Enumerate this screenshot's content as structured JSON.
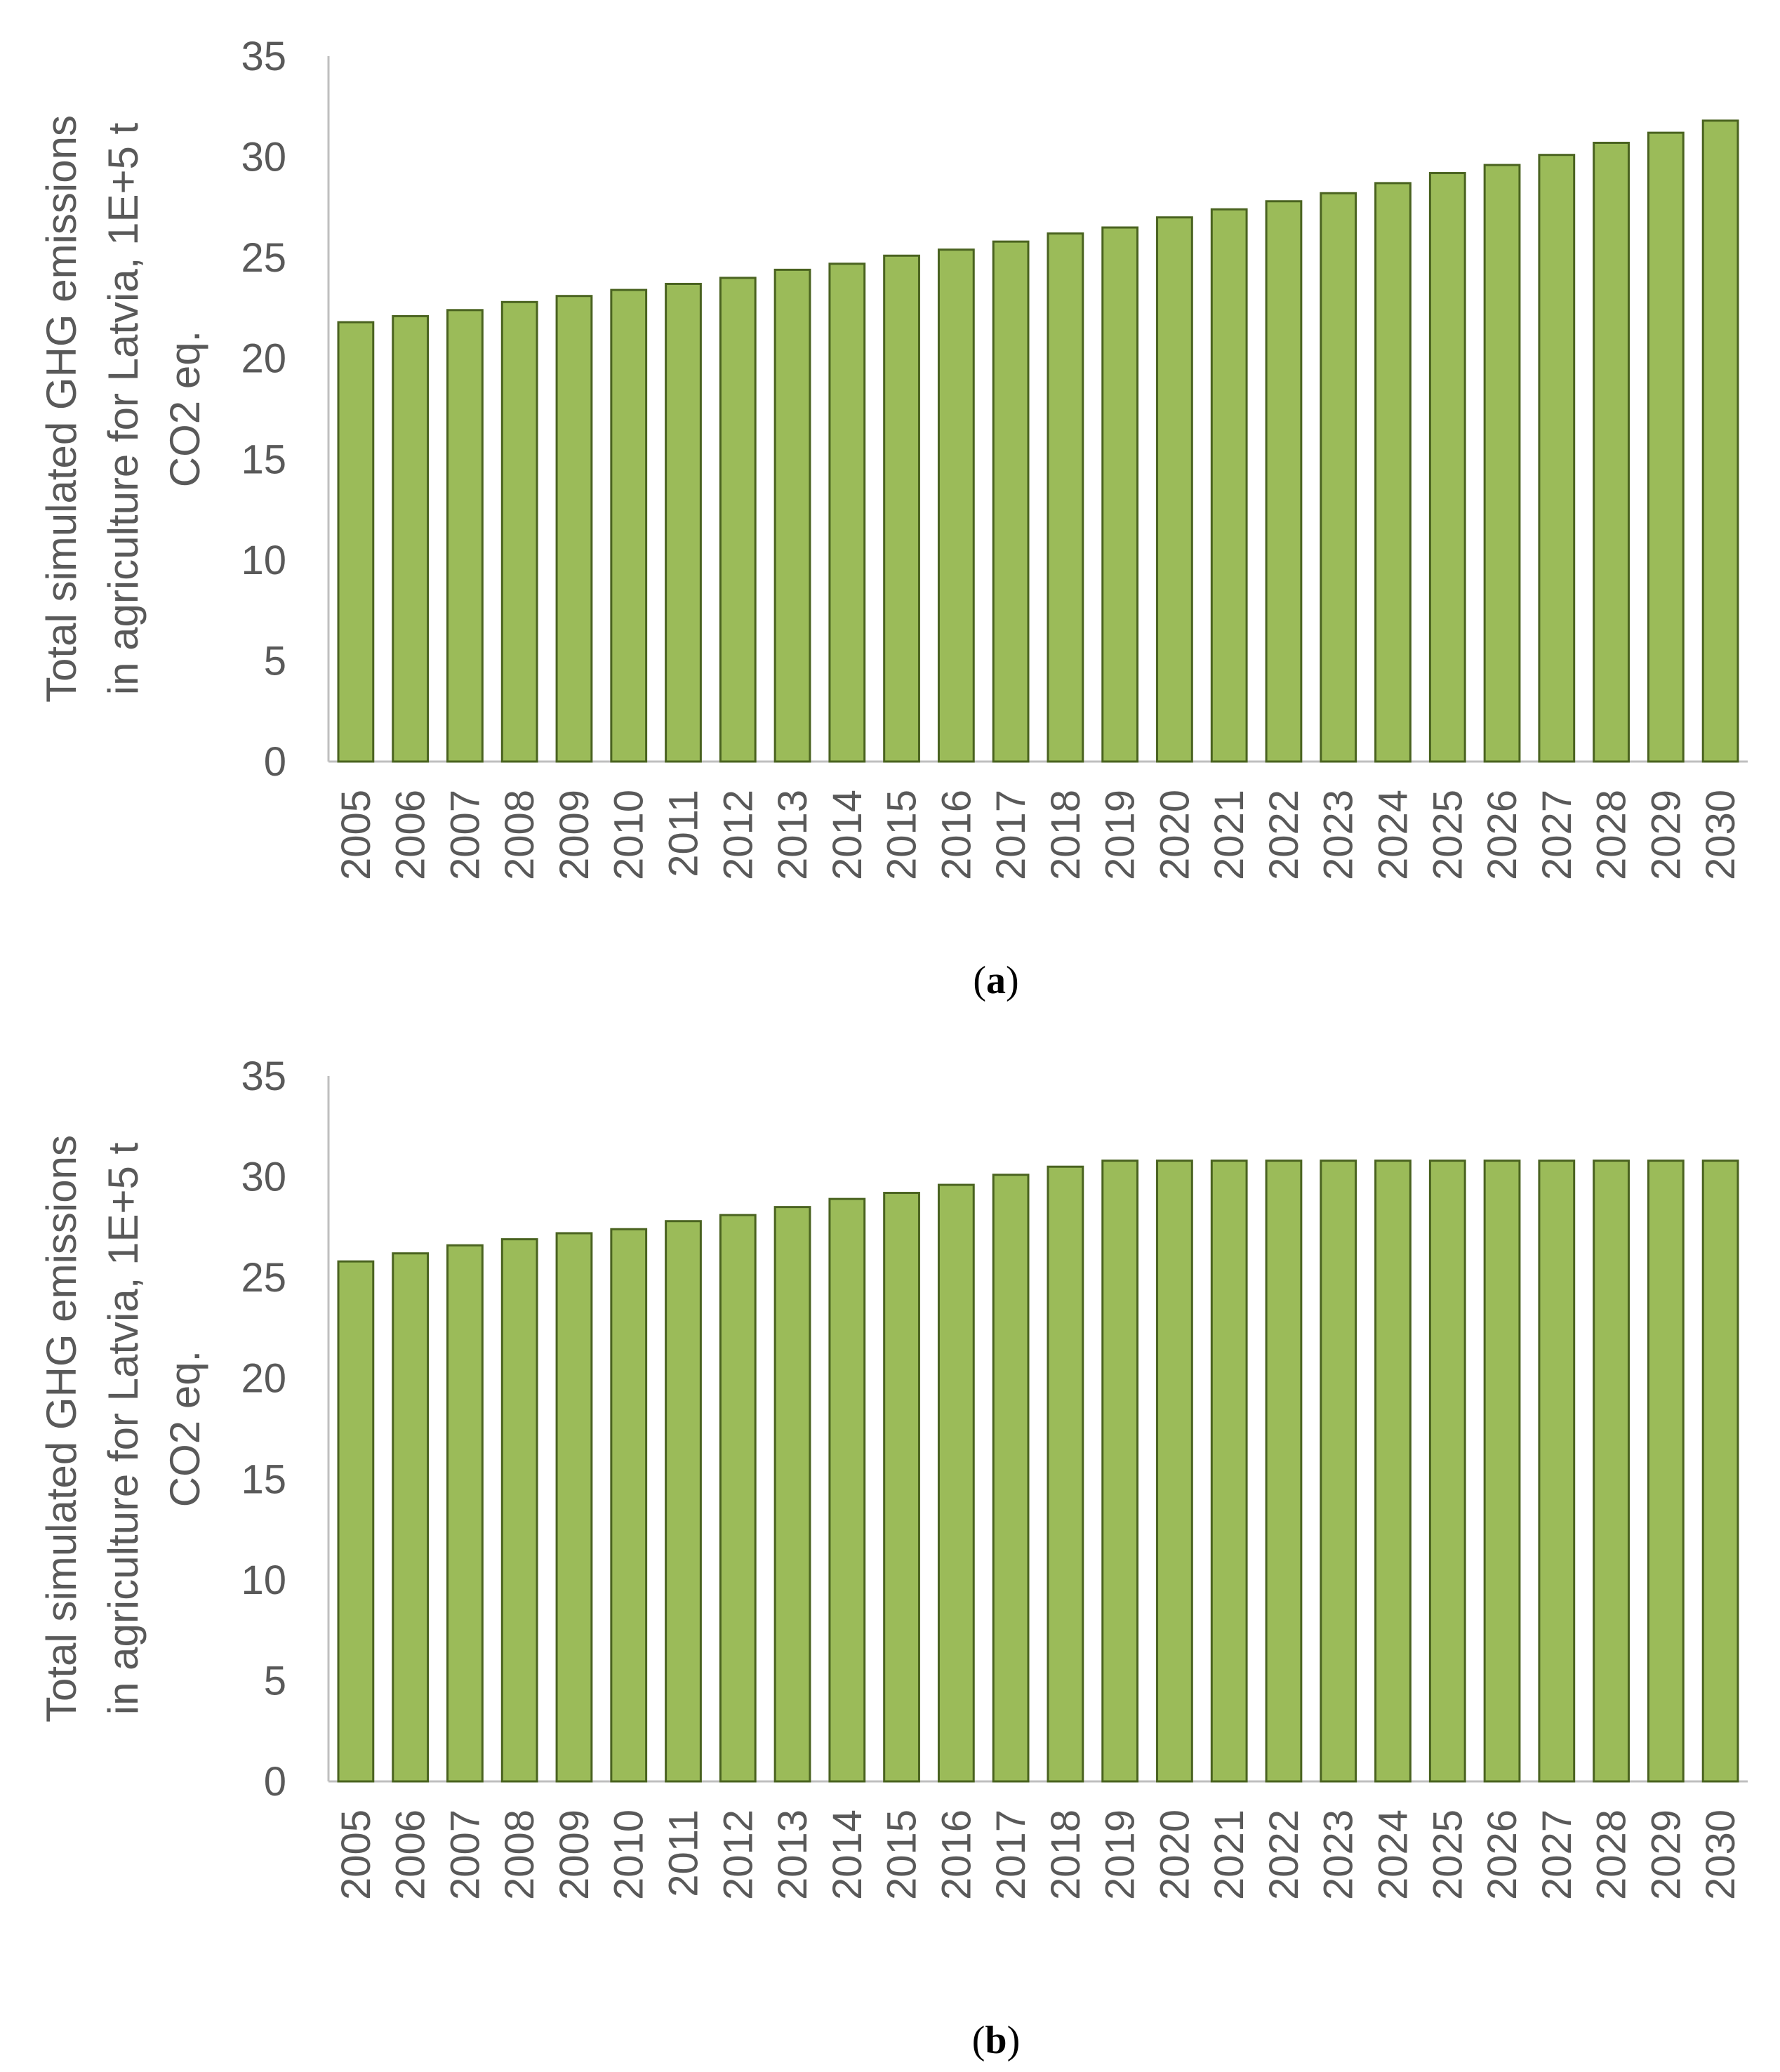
{
  "colors": {
    "bar_fill": "#9bbb59",
    "bar_stroke": "#4a6320",
    "axis": "#bfbfbf",
    "text": "#595959"
  },
  "chart_data": [
    {
      "type": "bar",
      "panel_label": "a",
      "ylabel": "Total simulated GHG emissions in agriculture for Latvia, 1E+5 t CO2 eq.",
      "ylabel_lines": [
        "Total simulated GHG emissions",
        "in agriculture for Latvia, 1E+5 t",
        "CO2 eq."
      ],
      "ylim": [
        0,
        35
      ],
      "yticks": [
        0,
        5,
        10,
        15,
        20,
        25,
        30,
        35
      ],
      "grid": false,
      "categories": [
        "2005",
        "2006",
        "2007",
        "2008",
        "2009",
        "2010",
        "2011",
        "2012",
        "2013",
        "2014",
        "2015",
        "2016",
        "2017",
        "2018",
        "2019",
        "2020",
        "2021",
        "2022",
        "2023",
        "2024",
        "2025",
        "2026",
        "2027",
        "2028",
        "2029",
        "2030"
      ],
      "values": [
        21.8,
        22.1,
        22.4,
        22.8,
        23.1,
        23.4,
        23.7,
        24.0,
        24.4,
        24.7,
        25.1,
        25.4,
        25.8,
        26.2,
        26.5,
        27.0,
        27.4,
        27.8,
        28.2,
        28.7,
        29.2,
        29.6,
        30.1,
        30.7,
        31.2,
        31.8
      ]
    },
    {
      "type": "bar",
      "panel_label": "b",
      "ylabel": "Total simulated GHG emissions in agriculture for Latvia, 1E+5 t CO2 eq.",
      "ylabel_lines": [
        "Total simulated GHG emissions",
        "in agriculture for Latvia, 1E+5 t",
        "CO2 eq."
      ],
      "ylim": [
        0,
        35
      ],
      "yticks": [
        0,
        5,
        10,
        15,
        20,
        25,
        30,
        35
      ],
      "grid": false,
      "categories": [
        "2005",
        "2006",
        "2007",
        "2008",
        "2009",
        "2010",
        "2011",
        "2012",
        "2013",
        "2014",
        "2015",
        "2016",
        "2017",
        "2018",
        "2019",
        "2020",
        "2021",
        "2022",
        "2023",
        "2024",
        "2025",
        "2026",
        "2027",
        "2028",
        "2029",
        "2030"
      ],
      "values": [
        25.8,
        26.2,
        26.6,
        26.9,
        27.2,
        27.4,
        27.8,
        28.1,
        28.5,
        28.9,
        29.2,
        29.6,
        30.1,
        30.5,
        30.8,
        30.8,
        30.8,
        30.8,
        30.8,
        30.8,
        30.8,
        30.8,
        30.8,
        30.8,
        30.8,
        30.8
      ]
    }
  ]
}
